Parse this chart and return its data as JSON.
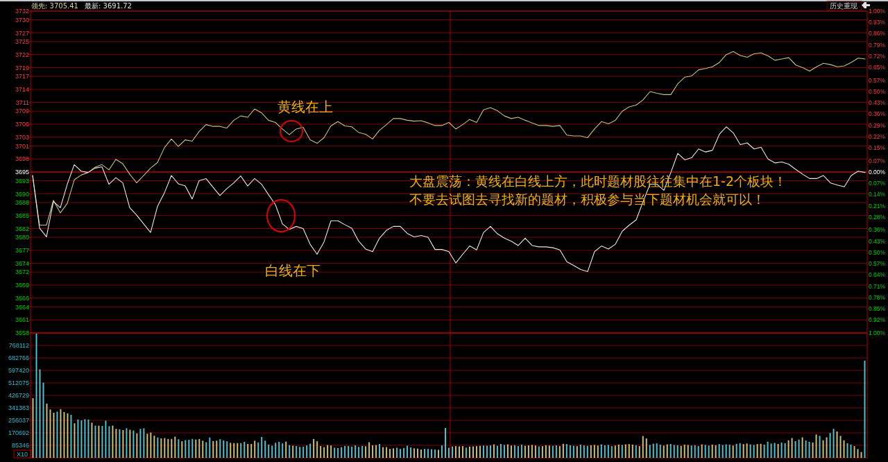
{
  "chart_data": [
    {
      "type": "line",
      "categories": [
        null,
        null,
        null,
        null,
        null,
        null,
        null,
        null,
        null,
        null,
        null,
        null,
        null,
        null,
        null,
        null,
        null,
        null,
        null,
        null,
        null,
        null,
        null,
        null,
        null,
        null,
        null,
        null,
        null,
        null,
        null,
        null,
        null,
        null,
        null,
        null,
        null,
        null,
        null,
        null,
        null,
        null,
        null,
        null,
        null,
        null,
        null,
        null,
        null,
        null,
        null,
        null,
        null,
        null,
        null,
        null,
        null,
        null,
        null,
        null,
        null,
        null,
        null,
        null,
        null,
        null,
        null,
        null,
        null,
        null,
        null,
        null,
        null,
        null,
        null,
        null,
        null,
        null,
        null,
        null,
        null,
        null,
        null,
        null,
        null,
        null,
        null,
        null,
        null,
        null,
        null,
        null,
        null,
        null,
        null,
        null,
        null,
        null,
        null,
        null,
        null,
        null,
        null,
        null,
        null,
        null,
        null,
        null,
        null,
        null,
        null,
        null,
        null,
        null,
        null,
        null,
        null,
        null,
        null,
        null,
        null
      ],
      "series": [
        {
          "color": "#c8c078",
          "values": [
            3694.2,
            3682.8,
            3682.8,
            3688.5,
            3685.6,
            3687.8,
            3693.2,
            3694.3,
            3694.9,
            3696.1,
            3696.7,
            3695.5,
            3697.9,
            3696.9,
            3694.5,
            3692.5,
            3694.2,
            3695.9,
            3697.2,
            3700.6,
            3702.6,
            3700.9,
            3702.4,
            3702.1,
            3704.3,
            3705.9,
            3705.5,
            3705.5,
            3705.1,
            3706.9,
            3707.9,
            3707.6,
            3709.5,
            3708.6,
            3706.9,
            3706.4,
            3704.9,
            3703.6,
            3704.9,
            3705.3,
            3702.4,
            3701.6,
            3702.9,
            3705.6,
            3706.6,
            3705.6,
            3705.4,
            3704.1,
            3703.7,
            3702.6,
            3704.6,
            3705.9,
            3707.3,
            3707.3,
            3706.9,
            3706.7,
            3706.8,
            3706.3,
            3705.7,
            3705.7,
            3706.4,
            3704.9,
            3705.9,
            3707.1,
            3706.4,
            3709.3,
            3709.8,
            3709.1,
            3707.9,
            3707.3,
            3707.6,
            3706.9,
            3706.3,
            3705.7,
            3705.7,
            3705.5,
            3705.7,
            3703.5,
            3703.3,
            3703.3,
            3702.9,
            3704.9,
            3706.6,
            3706.1,
            3706.9,
            3709.0,
            3710.0,
            3710.4,
            3711.6,
            3713.5,
            3713.1,
            3712.8,
            3712.8,
            3715.3,
            3716.8,
            3717.1,
            3718.5,
            3718.8,
            3719.2,
            3720.2,
            3722.0,
            3722.7,
            3721.8,
            3721.4,
            3722.2,
            3722.4,
            3721.7,
            3720.7,
            3721.0,
            3721.3,
            3719.6,
            3719.0,
            3718.2,
            3719.2,
            3720.0,
            3719.7,
            3719.2,
            3719.4,
            3720.2,
            3721.2,
            3721.0
          ]
        },
        {
          "color": "#e8e8e8",
          "values": [
            3694.2,
            3682.1,
            3680.1,
            3688.2,
            3686.8,
            3692.2,
            3696.7,
            3695.2,
            3694.9,
            3695.9,
            3696.2,
            3692.2,
            3693.7,
            3692.5,
            3686.8,
            3685.1,
            3683.1,
            3681.1,
            3687.1,
            3690.2,
            3694.2,
            3692.3,
            3691.8,
            3688.8,
            3693.0,
            3693.5,
            3691.5,
            3689.6,
            3691.2,
            3692.5,
            3694.1,
            3691.8,
            3693.5,
            3692.2,
            3689.8,
            3687.5,
            3683.1,
            3681.8,
            3682.5,
            3682.0,
            3678.4,
            3676.1,
            3678.9,
            3683.8,
            3683.8,
            3682.9,
            3682.1,
            3679.1,
            3677.3,
            3676.7,
            3679.8,
            3681.6,
            3682.5,
            3682.5,
            3680.9,
            3680.1,
            3680.4,
            3680.0,
            3677.2,
            3677.2,
            3676.7,
            3674.1,
            3676.1,
            3678.0,
            3677.1,
            3681.1,
            3682.5,
            3680.8,
            3679.8,
            3679.1,
            3678.1,
            3679.8,
            3678.1,
            3677.8,
            3677.8,
            3677.6,
            3677.1,
            3674.4,
            3673.5,
            3672.6,
            3672.1,
            3676.7,
            3678.0,
            3677.3,
            3678.4,
            3681.4,
            3682.8,
            3684.0,
            3688.2,
            3692.2,
            3692.2,
            3690.8,
            3694.9,
            3699.3,
            3697.8,
            3698.3,
            3700.3,
            3699.6,
            3700.0,
            3703.7,
            3705.4,
            3704.0,
            3701.3,
            3701.7,
            3700.3,
            3700.7,
            3698.0,
            3697.1,
            3697.3,
            3696.8,
            3695.6,
            3694.5,
            3693.5,
            3693.5,
            3694.2,
            3692.5,
            3692.0,
            3691.6,
            3694.2,
            3695.2,
            3694.9
          ]
        }
      ],
      "ylim": [
        3658,
        3732
      ],
      "yticks": [
        3658,
        3661,
        3664,
        3666,
        3669,
        3672,
        3674,
        3677,
        3680,
        3682,
        3685,
        3688,
        3690,
        3693,
        3695,
        3698,
        3701,
        3703,
        3706,
        3709,
        3711,
        3714,
        3717,
        3719,
        3722,
        3725,
        3727,
        3730,
        3732
      ],
      "y2lim": [
        -1,
        1
      ],
      "y2ticks": [
        {
          "value": -1,
          "label": "1.00%"
        },
        {
          "value": -0.92,
          "label": "0.92%"
        },
        {
          "value": -0.85,
          "label": "0.85%"
        },
        {
          "value": -0.78,
          "label": "0.78%"
        },
        {
          "value": -0.71,
          "label": "0.71%"
        },
        {
          "value": -0.64,
          "label": "0.64%"
        },
        {
          "value": -0.57,
          "label": "0.57%"
        },
        {
          "value": -0.5,
          "label": "0.50%"
        },
        {
          "value": -0.43,
          "label": "0.43%"
        },
        {
          "value": -0.36,
          "label": "0.36%"
        },
        {
          "value": -0.28,
          "label": "0.28%"
        },
        {
          "value": -0.21,
          "label": "0.21%"
        },
        {
          "value": -0.14,
          "label": "0.14%"
        },
        {
          "value": -0.07,
          "label": "0.07%"
        },
        {
          "value": 0,
          "label": "0.00%"
        },
        {
          "value": 0.07,
          "label": "0.07%"
        },
        {
          "value": 0.15,
          "label": "0.15%"
        },
        {
          "value": 0.22,
          "label": "0.22%"
        },
        {
          "value": 0.29,
          "label": "0.29%"
        },
        {
          "value": 0.36,
          "label": "0.36%"
        },
        {
          "value": 0.43,
          "label": "0.43%"
        },
        {
          "value": 0.5,
          "label": "0.50%"
        },
        {
          "value": 0.57,
          "label": "0.57%"
        },
        {
          "value": 0.65,
          "label": "0.65%"
        },
        {
          "value": 0.72,
          "label": "0.72%"
        },
        {
          "value": 0.79,
          "label": "0.79%"
        },
        {
          "value": 0.86,
          "label": "0.86%"
        },
        {
          "value": 0.93,
          "label": "0.93%"
        },
        {
          "value": 1,
          "label": "1.00%"
        }
      ],
      "grid": "y",
      "ref_lines": [
        {
          "axis": "y2",
          "value": 0,
          "color": "#e00000"
        }
      ],
      "annotations": [
        "领先: 3705.41",
        "最新: 3691.72",
        "黄线在上",
        "白线在下",
        "大盘震荡：黄线在白线上方，此时题材股往往集中在1-2个板块！",
        "不要去试图去寻找新的题材，积极参与当下题材机会就可以！",
        "历史重现"
      ]
    },
    {
      "type": "bar",
      "categories": [
        null,
        null,
        null,
        null,
        null,
        null,
        null,
        null,
        null,
        null,
        null,
        null,
        null,
        null,
        null,
        null,
        null,
        null,
        null,
        null,
        null,
        null,
        null,
        null,
        null,
        null,
        null,
        null,
        null,
        null,
        null,
        null,
        null,
        null,
        null,
        null,
        null,
        null,
        null,
        null,
        null,
        null,
        null,
        null,
        null,
        null,
        null,
        null,
        null,
        null,
        null,
        null,
        null,
        null,
        null,
        null,
        null,
        null,
        null,
        null,
        null,
        null,
        null,
        null,
        null,
        null,
        null,
        null,
        null,
        null,
        null,
        null,
        null,
        null,
        null,
        null,
        null,
        null,
        null,
        null,
        null,
        null,
        null,
        null,
        null,
        null,
        null,
        null,
        null,
        null,
        null,
        null,
        null,
        null,
        null,
        null,
        null,
        null,
        null,
        null,
        null,
        null,
        null,
        null,
        null,
        null,
        null,
        null,
        null,
        null,
        null,
        null,
        null,
        null,
        null,
        null,
        null,
        null,
        null,
        null,
        null,
        null,
        null,
        null,
        null,
        null,
        null,
        null,
        null,
        null,
        null,
        null,
        null,
        null,
        null,
        null,
        null,
        null,
        null,
        null,
        null,
        null,
        null,
        null,
        null,
        null,
        null,
        null,
        null,
        null,
        null,
        null,
        null,
        null,
        null,
        null,
        null,
        null,
        null,
        null,
        null,
        null,
        null,
        null,
        null,
        null,
        null,
        null,
        null,
        null,
        null,
        null,
        null,
        null,
        null,
        null,
        null,
        null,
        null,
        null,
        null,
        null,
        null,
        null,
        null,
        null,
        null,
        null,
        null,
        null,
        null,
        null,
        null,
        null,
        null,
        null,
        null,
        null,
        null,
        null,
        null,
        null,
        null,
        null,
        null,
        null,
        null,
        null,
        null,
        null,
        null,
        null,
        null,
        null,
        null,
        null,
        null,
        null,
        null,
        null,
        null,
        null,
        null,
        null,
        null,
        null,
        null,
        null,
        null,
        null,
        null,
        null,
        null,
        null,
        null,
        null,
        null,
        null,
        null,
        null,
        null
      ],
      "values": [
        407000,
        849000,
        605000,
        514000,
        371000,
        331000,
        308000,
        316000,
        333000,
        313000,
        304000,
        294000,
        236000,
        262000,
        256000,
        264000,
        262000,
        240000,
        220000,
        220000,
        218000,
        254000,
        216000,
        220000,
        198000,
        195000,
        190000,
        202000,
        192000,
        187000,
        167000,
        198000,
        202000,
        165000,
        173000,
        151000,
        139000,
        133000,
        135000,
        129000,
        129000,
        145000,
        127000,
        113000,
        121000,
        123000,
        129000,
        125000,
        129000,
        117000,
        107000,
        139000,
        115000,
        117000,
        127000,
        119000,
        113000,
        103000,
        101000,
        101000,
        101000,
        109000,
        95000,
        95000,
        117000,
        105000,
        143000,
        117000,
        91000,
        83000,
        103000,
        109000,
        99000,
        111000,
        87000,
        83000,
        81000,
        75000,
        77000,
        85000,
        97000,
        129000,
        113000,
        81000,
        73000,
        87000,
        85000,
        69000,
        67000,
        73000,
        81000,
        81000,
        77000,
        85000,
        75000,
        81000,
        79000,
        107000,
        85000,
        87000,
        95000,
        73000,
        73000,
        61000,
        65000,
        69000,
        61000,
        67000,
        83000,
        71000,
        65000,
        63000,
        57000,
        61000,
        61000,
        59000,
        57000,
        55000,
        85000,
        204000,
        69000,
        78000,
        80000,
        78000,
        80000,
        70000,
        76000,
        78000,
        80000,
        82000,
        84000,
        83000,
        85000,
        92000,
        82000,
        95000,
        88000,
        92000,
        84000,
        86000,
        80000,
        90000,
        82000,
        85000,
        88000,
        84000,
        78000,
        80000,
        86000,
        84000,
        82000,
        85000,
        80000,
        96000,
        94000,
        86000,
        82000,
        80000,
        90000,
        85000,
        82000,
        86000,
        88000,
        84000,
        92000,
        86000,
        88000,
        80000,
        84000,
        90000,
        88000,
        92000,
        94000,
        90000,
        86000,
        80000,
        149000,
        133000,
        88000,
        97000,
        99000,
        90000,
        84000,
        92000,
        95000,
        88000,
        86000,
        82000,
        90000,
        88000,
        84000,
        86000,
        80000,
        92000,
        88000,
        84000,
        90000,
        86000,
        94000,
        88000,
        92000,
        90000,
        84000,
        96000,
        100000,
        94000,
        98000,
        92000,
        88000,
        94000,
        96000,
        90000,
        110000,
        98000,
        102000,
        95000,
        104000,
        100000,
        120000,
        135000,
        115000,
        125000,
        140000,
        119000,
        110000,
        105000,
        160000,
        150000,
        120000,
        140000,
        170000,
        198000,
        180000,
        150000,
        120000,
        100000,
        90000,
        80000,
        60000,
        40000,
        665000
      ],
      "colors": [
        "#c8bf78",
        "#4cc0cc",
        "#4cc0cc",
        "#4cc0cc",
        "#c8bf78",
        "#c8bf78",
        "#c8bf78",
        "#4cc0cc",
        "#c8bf78",
        "#c8bf78",
        "#c8bf78",
        "#4cc0cc",
        "#c8bf78",
        "#4cc0cc",
        "#4cc0cc",
        "#4cc0cc",
        "#4cc0cc",
        "#c8bf78",
        "#4cc0cc",
        "#c8bf78",
        "#4cc0cc",
        "#4cc0cc",
        "#4cc0cc",
        "#c8bf78",
        "#c8bf78",
        "#4cc0cc",
        "#c8bf78",
        "#4cc0cc",
        "#c8bf78",
        "#4cc0cc",
        "#c8bf78",
        "#4cc0cc",
        "#4cc0cc",
        "#c8bf78",
        "#c8bf78",
        "#c8bf78",
        "#4cc0cc",
        "#c8bf78",
        "#c8bf78",
        "#c8bf78",
        "#c8bf78",
        "#c8bf78",
        "#4cc0cc",
        "#c8bf78",
        "#4cc0cc",
        "#4cc0cc",
        "#4cc0cc",
        "#c8bf78",
        "#c8bf78",
        "#c8bf78",
        "#4cc0cc",
        "#4cc0cc",
        "#c8bf78",
        "#c8bf78",
        "#4cc0cc",
        "#4cc0cc",
        "#4cc0cc",
        "#c8bf78",
        "#c8bf78",
        "#c8bf78",
        "#4cc0cc",
        "#4cc0cc",
        "#c8bf78",
        "#c8bf78",
        "#c8bf78",
        "#4cc0cc",
        "#4cc0cc",
        "#4cc0cc",
        "#4cc0cc",
        "#4cc0cc",
        "#4cc0cc",
        "#4cc0cc",
        "#4cc0cc",
        "#c8bf78",
        "#4cc0cc",
        "#c8bf78",
        "#4cc0cc",
        "#4cc0cc",
        "#4cc0cc",
        "#4cc0cc",
        "#4cc0cc",
        "#c8bf78",
        "#c8bf78",
        "#c8bf78",
        "#c8bf78",
        "#c8bf78",
        "#c8bf78",
        "#4cc0cc",
        "#4cc0cc",
        "#4cc0cc",
        "#4cc0cc",
        "#4cc0cc",
        "#4cc0cc",
        "#4cc0cc",
        "#4cc0cc",
        "#4cc0cc",
        "#c8bf78",
        "#c8bf78",
        "#c8bf78",
        "#c8bf78",
        "#4cc0cc",
        "#c8bf78",
        "#c8bf78",
        "#c8bf78",
        "#c8bf78",
        "#4cc0cc",
        "#4cc0cc",
        "#4cc0cc",
        "#4cc0cc",
        "#4cc0cc",
        "#c8bf78",
        "#c8bf78",
        "#c8bf78",
        "#4cc0cc",
        "#4cc0cc",
        "#4cc0cc",
        "#4cc0cc",
        "#c8bf78",
        "#4cc0cc",
        "#4cc0cc",
        "#4cc0cc",
        "#4cc0cc",
        "#c8bf78",
        "#c8bf78",
        "#c8bf78",
        "#4cc0cc",
        "#c8bf78",
        "#c8bf78",
        "#c8bf78",
        "#c8bf78",
        "#4cc0cc",
        "#4cc0cc",
        "#4cc0cc",
        "#c8bf78",
        "#4cc0cc",
        "#4cc0cc",
        "#4cc0cc",
        "#c8bf78",
        "#c8bf78",
        "#4cc0cc",
        "#4cc0cc",
        "#4cc0cc",
        "#c8bf78",
        "#c8bf78",
        "#c8bf78",
        "#c8bf78",
        "#4cc0cc",
        "#c8bf78",
        "#c8bf78",
        "#c8bf78",
        "#4cc0cc",
        "#4cc0cc",
        "#c8bf78",
        "#c8bf78",
        "#4cc0cc",
        "#4cc0cc",
        "#4cc0cc",
        "#c8bf78",
        "#4cc0cc",
        "#4cc0cc",
        "#4cc0cc",
        "#c8bf78",
        "#c8bf78",
        "#c8bf78",
        "#4cc0cc",
        "#4cc0cc",
        "#4cc0cc",
        "#4cc0cc",
        "#c8bf78",
        "#c8bf78",
        "#4cc0cc",
        "#c8bf78",
        "#c8bf78",
        "#c8bf78",
        "#4cc0cc",
        "#c8bf78",
        "#c8bf78",
        "#c8bf78",
        "#4cc0cc",
        "#4cc0cc",
        "#4cc0cc",
        "#4cc0cc",
        "#c8bf78",
        "#c8bf78",
        "#4cc0cc",
        "#4cc0cc",
        "#4cc0cc",
        "#c8bf78",
        "#c8bf78",
        "#c8bf78",
        "#4cc0cc",
        "#4cc0cc",
        "#4cc0cc",
        "#c8bf78",
        "#4cc0cc",
        "#4cc0cc",
        "#c8bf78",
        "#c8bf78",
        "#4cc0cc",
        "#4cc0cc",
        "#4cc0cc",
        "#4cc0cc",
        "#c8bf78",
        "#4cc0cc",
        "#4cc0cc",
        "#c8bf78",
        "#c8bf78",
        "#4cc0cc",
        "#4cc0cc",
        "#c8bf78",
        "#c8bf78",
        "#4cc0cc",
        "#4cc0cc",
        "#4cc0cc",
        "#4cc0cc",
        "#c8bf78",
        "#4cc0cc",
        "#4cc0cc",
        "#c8bf78",
        "#c8bf78",
        "#4cc0cc",
        "#4cc0cc",
        "#c8bf78",
        "#4cc0cc",
        "#4cc0cc",
        "#c8bf78",
        "#c8bf78",
        "#4cc0cc",
        "#c8bf78",
        "#c8bf78",
        "#4cc0cc",
        "#4cc0cc",
        "#c8bf78",
        "#c8bf78",
        "#c8bf78",
        "#4cc0cc",
        "#4cc0cc",
        "#c8bf78",
        "#c8bf78",
        "#c8bf78",
        "#4cc0cc"
      ],
      "ylim": [
        0,
        853458
      ],
      "yticks": [
        85346,
        170692,
        256037,
        341383,
        426729,
        512075,
        597420,
        682766,
        768112
      ],
      "ylabel": "X10",
      "grid": "y"
    }
  ]
}
